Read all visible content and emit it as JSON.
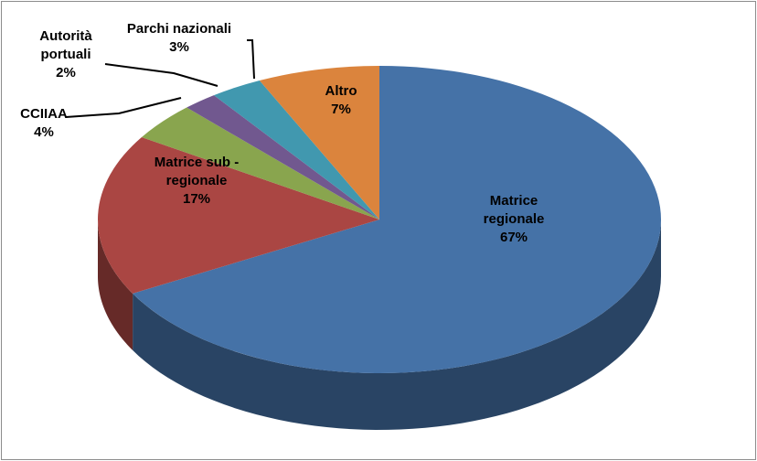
{
  "chart_data": {
    "type": "pie",
    "categories": [
      "Matrice regionale",
      "Matrice sub - regionale",
      "CCIIAA",
      "Autorità portuali",
      "Parchi nazionali",
      "Altro"
    ],
    "values": [
      67,
      17,
      4,
      2,
      3,
      7
    ],
    "value_labels": [
      "67%",
      "17%",
      "4%",
      "2%",
      "3%",
      "7%"
    ],
    "colors": [
      "#4572a7",
      "#aa4643",
      "#89a54e",
      "#71588f",
      "#4198af",
      "#db843d"
    ]
  }
}
